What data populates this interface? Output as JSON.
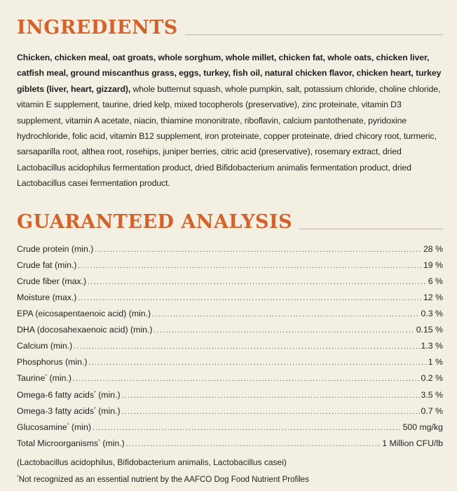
{
  "ingredients": {
    "title": "INGREDIENTS",
    "bold_text": "Chicken, chicken meal, oat groats, whole sorghum, whole millet, chicken fat, whole oats, chicken liver, catfish meal, ground miscanthus grass, eggs, turkey, fish oil, natural chicken flavor, chicken heart, turkey giblets (liver, heart, gizzard),",
    "regular_text": " whole butternut squash, whole pumpkin, salt, potassium chloride, choline chloride, vitamin E supplement, taurine, dried kelp, mixed tocopherols (preservative), zinc proteinate, vitamin D3 supplement, vitamin A acetate, niacin, thiamine mononitrate, riboflavin, calcium pantothenate, pyridoxine hydrochloride, folic acid, vitamin B12 supplement, iron proteinate, copper proteinate, dried chicory root, turmeric, sarsaparilla root, althea root, rosehips, juniper berries, citric acid (preservative), rosemary extract, dried Lactobacillus acidophilus fermentation product, dried Bifidobacterium animalis fermentation product, dried Lactobacillus casei fermentation product."
  },
  "analysis": {
    "title": "GUARANTEED ANALYSIS",
    "rows": [
      {
        "label": "Crude protein (min.)",
        "value": "28 %"
      },
      {
        "label": "Crude fat (min.)",
        "value": "19 %"
      },
      {
        "label": "Crude fiber (max.)",
        "value": "6 %"
      },
      {
        "label": "Moisture (max.)",
        "value": "12 %"
      },
      {
        "label": "EPA (eicosapentaenoic acid) (min.)",
        "value": "0.3 %"
      },
      {
        "label": "DHA (docosahexaenoic acid) (min.)",
        "value": "0.15 %"
      },
      {
        "label": "Calcium (min.)",
        "value": "1.3 %"
      },
      {
        "label": "Phosphorus (min.)",
        "value": "1 %"
      },
      {
        "label_pre": "Taurine",
        "mark": "*",
        "label_post": " (min.)",
        "value": "0.2 %"
      },
      {
        "label_pre": "Omega-6 fatty acids",
        "mark": "*",
        "label_post": " (min.)",
        "value": "3.5 %"
      },
      {
        "label_pre": "Omega-3 fatty acids",
        "mark": "*",
        "label_post": " (min.)",
        "value": "0.7 %"
      },
      {
        "label_pre": "Glucosamine",
        "mark": "*",
        "label_post": " (min)",
        "value": "500 mg/kg"
      },
      {
        "label_pre": "Total Microorganisms",
        "mark": "*",
        "label_post": " (min.)",
        "value": "1 Million CFU/lb"
      }
    ],
    "note": "(Lactobacillus acidophilus, Bifidobacterium animalis, Lactobacillus casei)",
    "footnote_mark": "*",
    "footnote": "Not recognized as an essential nutrient by the AAFCO Dog Food Nutrient Profiles"
  }
}
